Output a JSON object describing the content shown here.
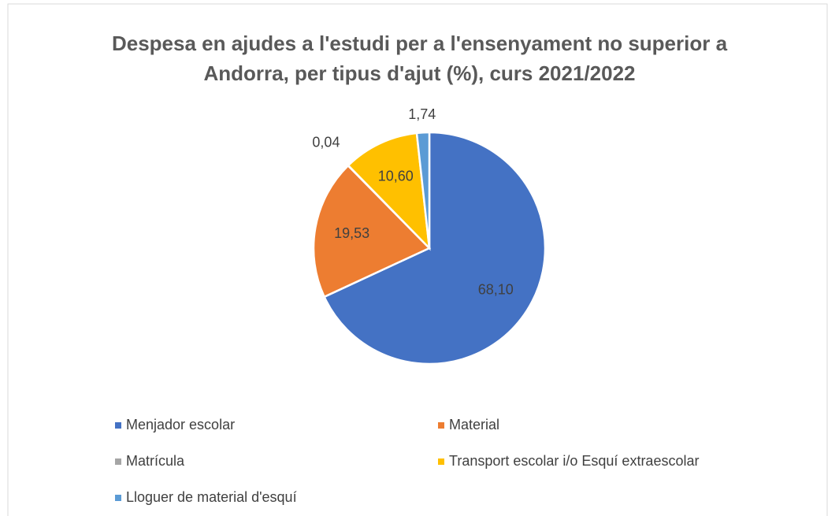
{
  "chart_data": {
    "type": "pie",
    "title": "Despesa en ajudes a l'estudi per a l'ensenyament no superior a Andorra, per tipus d'ajut (%), curs 2021/2022",
    "categories": [
      "Menjador escolar",
      "Material",
      "Matrícula",
      "Transport escolar i/o Esquí extraescolar",
      "Lloguer de material d'esquí"
    ],
    "values": [
      68.1,
      19.53,
      0.04,
      10.6,
      1.74
    ],
    "value_labels": [
      "68,10",
      "19,53",
      "0,04",
      "10,60",
      "1,74"
    ],
    "colors": [
      "#4472c4",
      "#ed7d31",
      "#a5a5a5",
      "#ffc000",
      "#5b9bd5"
    ],
    "legend": "bottom"
  }
}
